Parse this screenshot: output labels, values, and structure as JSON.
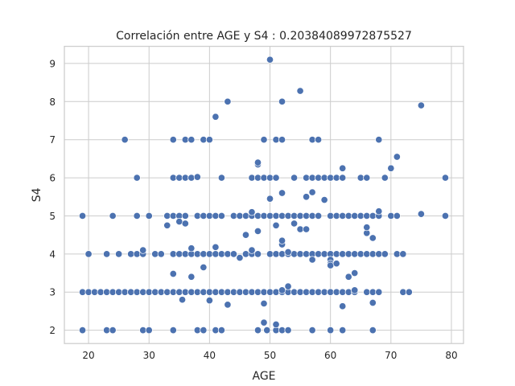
{
  "chart_data": {
    "type": "scatter",
    "title": "Correlación entre AGE y S4 : 0.20384089972875527",
    "xlabel": "AGE",
    "ylabel": "S4",
    "xlim": [
      16,
      82
    ],
    "ylim": [
      1.65,
      9.45
    ],
    "xticks": [
      20,
      30,
      40,
      50,
      60,
      70,
      80
    ],
    "yticks": [
      2,
      3,
      4,
      5,
      6,
      7,
      8,
      9
    ],
    "grid": true,
    "color": "#4c72b0",
    "points": [
      [
        19,
        2
      ],
      [
        23,
        2
      ],
      [
        24,
        2
      ],
      [
        29,
        2
      ],
      [
        30,
        2
      ],
      [
        34,
        2
      ],
      [
        38,
        2
      ],
      [
        39,
        2
      ],
      [
        41,
        2
      ],
      [
        42,
        2
      ],
      [
        48,
        2
      ],
      [
        49.5,
        2
      ],
      [
        51,
        2
      ],
      [
        52,
        2
      ],
      [
        53,
        2
      ],
      [
        57,
        2
      ],
      [
        60,
        2
      ],
      [
        62,
        2
      ],
      [
        67,
        2
      ],
      [
        49,
        2.2
      ],
      [
        51,
        2.15
      ],
      [
        19,
        3
      ],
      [
        20,
        3
      ],
      [
        21,
        3
      ],
      [
        22,
        3
      ],
      [
        23,
        3
      ],
      [
        24,
        3
      ],
      [
        25,
        3
      ],
      [
        26,
        3
      ],
      [
        27,
        3
      ],
      [
        28,
        3
      ],
      [
        29,
        3
      ],
      [
        30,
        3
      ],
      [
        31,
        3
      ],
      [
        32,
        3
      ],
      [
        33,
        3
      ],
      [
        34,
        3
      ],
      [
        35,
        3
      ],
      [
        36,
        3
      ],
      [
        37,
        3
      ],
      [
        38,
        3
      ],
      [
        39,
        3
      ],
      [
        40,
        3
      ],
      [
        41,
        3
      ],
      [
        42,
        3
      ],
      [
        43,
        3
      ],
      [
        44,
        3
      ],
      [
        45,
        3
      ],
      [
        46,
        3
      ],
      [
        47,
        3
      ],
      [
        48,
        3
      ],
      [
        49,
        3
      ],
      [
        50,
        3
      ],
      [
        51,
        3
      ],
      [
        52,
        3
      ],
      [
        53,
        3
      ],
      [
        54,
        3
      ],
      [
        55,
        3
      ],
      [
        56,
        3
      ],
      [
        57,
        3
      ],
      [
        58,
        3
      ],
      [
        59,
        3
      ],
      [
        60,
        3
      ],
      [
        61,
        3
      ],
      [
        62,
        3
      ],
      [
        63,
        3
      ],
      [
        64,
        3
      ],
      [
        66,
        3
      ],
      [
        67,
        3
      ],
      [
        68,
        3
      ],
      [
        72,
        3
      ],
      [
        73,
        3
      ],
      [
        35.5,
        2.8
      ],
      [
        40,
        2.78
      ],
      [
        43,
        2.67
      ],
      [
        49,
        2.7
      ],
      [
        52,
        3.05
      ],
      [
        53,
        3.15
      ],
      [
        62,
        2.63
      ],
      [
        64,
        3.05
      ],
      [
        67,
        2.72
      ],
      [
        63,
        3.4
      ],
      [
        64,
        3.5
      ],
      [
        39,
        3.65
      ],
      [
        37,
        3.4
      ],
      [
        34,
        3.48
      ],
      [
        20,
        4
      ],
      [
        23,
        4
      ],
      [
        25,
        4
      ],
      [
        27,
        4
      ],
      [
        28,
        4
      ],
      [
        29,
        4
      ],
      [
        31,
        4
      ],
      [
        32,
        4
      ],
      [
        34,
        4
      ],
      [
        35,
        4
      ],
      [
        36,
        4
      ],
      [
        37,
        4
      ],
      [
        38,
        4
      ],
      [
        39,
        4
      ],
      [
        40,
        4
      ],
      [
        41,
        4
      ],
      [
        42,
        4
      ],
      [
        43,
        4
      ],
      [
        44,
        4
      ],
      [
        46,
        4
      ],
      [
        47,
        4
      ],
      [
        48,
        4
      ],
      [
        50,
        4
      ],
      [
        51,
        4
      ],
      [
        52,
        4
      ],
      [
        53,
        4
      ],
      [
        54,
        4
      ],
      [
        55,
        4
      ],
      [
        56,
        4
      ],
      [
        57,
        4
      ],
      [
        58,
        4
      ],
      [
        59,
        4
      ],
      [
        60,
        4
      ],
      [
        61,
        4
      ],
      [
        62,
        4
      ],
      [
        63,
        4
      ],
      [
        64,
        4
      ],
      [
        65,
        4
      ],
      [
        66,
        4
      ],
      [
        67,
        4
      ],
      [
        68,
        4
      ],
      [
        69,
        4
      ],
      [
        71,
        4
      ],
      [
        72,
        4
      ],
      [
        29,
        4.1
      ],
      [
        37,
        4.15
      ],
      [
        41,
        4.18
      ],
      [
        45,
        3.9
      ],
      [
        47,
        4.1
      ],
      [
        52,
        4.25
      ],
      [
        52,
        4.35
      ],
      [
        53,
        4.05
      ],
      [
        57,
        3.85
      ],
      [
        60,
        3.85
      ],
      [
        60,
        3.75
      ],
      [
        60,
        3.7
      ],
      [
        61,
        3.75
      ],
      [
        67,
        4.42
      ],
      [
        66,
        4.55
      ],
      [
        66,
        4.7
      ],
      [
        19,
        5
      ],
      [
        24,
        5
      ],
      [
        28,
        5
      ],
      [
        30,
        5
      ],
      [
        33,
        5
      ],
      [
        34,
        5
      ],
      [
        35,
        5
      ],
      [
        36,
        5
      ],
      [
        38,
        5
      ],
      [
        39,
        5
      ],
      [
        40,
        5
      ],
      [
        41,
        5
      ],
      [
        42,
        5
      ],
      [
        44,
        5
      ],
      [
        45,
        5
      ],
      [
        46,
        5
      ],
      [
        47,
        5
      ],
      [
        48,
        5
      ],
      [
        49,
        5
      ],
      [
        50,
        5
      ],
      [
        51,
        5
      ],
      [
        52,
        5
      ],
      [
        53,
        5
      ],
      [
        54,
        5
      ],
      [
        55,
        5
      ],
      [
        56,
        5
      ],
      [
        57,
        5
      ],
      [
        58,
        5
      ],
      [
        60,
        5
      ],
      [
        61,
        5
      ],
      [
        62,
        5
      ],
      [
        63,
        5
      ],
      [
        64,
        5
      ],
      [
        65,
        5
      ],
      [
        66,
        5
      ],
      [
        67,
        5
      ],
      [
        68,
        5
      ],
      [
        70,
        5
      ],
      [
        71,
        5
      ],
      [
        75,
        5.05
      ],
      [
        79,
        5
      ],
      [
        33,
        4.75
      ],
      [
        35,
        4.85
      ],
      [
        36,
        4.8
      ],
      [
        46,
        4.5
      ],
      [
        47,
        5.1
      ],
      [
        48,
        4.6
      ],
      [
        50,
        5.45
      ],
      [
        51,
        4.75
      ],
      [
        54,
        4.8
      ],
      [
        55,
        4.65
      ],
      [
        56,
        4.65
      ],
      [
        68,
        5.12
      ],
      [
        28,
        6
      ],
      [
        34,
        6
      ],
      [
        35,
        6
      ],
      [
        36,
        6
      ],
      [
        37,
        6
      ],
      [
        38,
        6.02
      ],
      [
        42,
        6
      ],
      [
        47,
        6
      ],
      [
        48,
        6
      ],
      [
        49,
        6
      ],
      [
        50,
        6
      ],
      [
        51,
        6
      ],
      [
        54,
        6
      ],
      [
        56,
        6
      ],
      [
        57,
        6
      ],
      [
        58,
        6
      ],
      [
        59,
        6
      ],
      [
        60,
        6
      ],
      [
        61,
        6
      ],
      [
        62,
        6
      ],
      [
        65,
        6
      ],
      [
        66,
        6
      ],
      [
        69,
        6
      ],
      [
        79,
        6
      ],
      [
        48,
        6.35
      ],
      [
        48,
        6.4
      ],
      [
        52,
        5.6
      ],
      [
        56,
        5.5
      ],
      [
        57,
        5.62
      ],
      [
        59,
        5.42
      ],
      [
        62,
        6.25
      ],
      [
        70,
        6.25
      ],
      [
        71,
        6.55
      ],
      [
        26,
        7
      ],
      [
        34,
        7
      ],
      [
        36,
        7
      ],
      [
        37,
        7
      ],
      [
        39,
        7
      ],
      [
        40,
        7
      ],
      [
        49,
        7
      ],
      [
        51,
        7
      ],
      [
        52,
        7
      ],
      [
        57,
        7
      ],
      [
        58,
        7
      ],
      [
        68,
        7
      ],
      [
        41,
        7.6
      ],
      [
        43,
        8
      ],
      [
        52,
        8
      ],
      [
        55,
        8.28
      ],
      [
        75,
        7.9
      ],
      [
        50,
        9.1
      ]
    ]
  }
}
